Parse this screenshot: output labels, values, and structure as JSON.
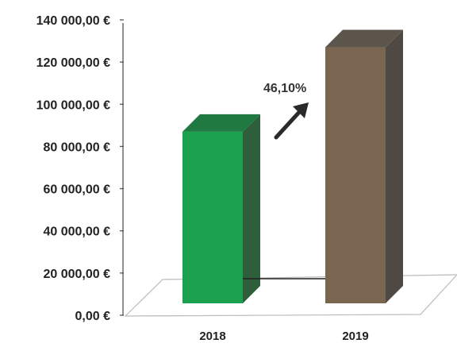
{
  "chart_data": {
    "type": "bar",
    "categories": [
      "2018",
      "2019"
    ],
    "values": [
      87000,
      127000
    ],
    "ylim": [
      0,
      140000
    ],
    "y_ticks": [
      {
        "value": 0,
        "label": "0,00 €"
      },
      {
        "value": 20000,
        "label": "20 000,00 €"
      },
      {
        "value": 40000,
        "label": "40 000,00 €"
      },
      {
        "value": 60000,
        "label": "60 000,00 €"
      },
      {
        "value": 80000,
        "label": "80 000,00 €"
      },
      {
        "value": 100000,
        "label": "100 000,00 €"
      },
      {
        "value": 120000,
        "label": "120 000,00 €"
      },
      {
        "value": 140000,
        "label": "140 000,00 €"
      }
    ],
    "annotation": "46,10%",
    "colors": {
      "2018": {
        "front": "#1aa04f",
        "side": "#2f5f3a",
        "top": "#1f7a42"
      },
      "2019": {
        "front": "#7a6650",
        "side": "#4e4a43",
        "top": "#5c554c"
      }
    },
    "grid": false,
    "legend": "none"
  }
}
